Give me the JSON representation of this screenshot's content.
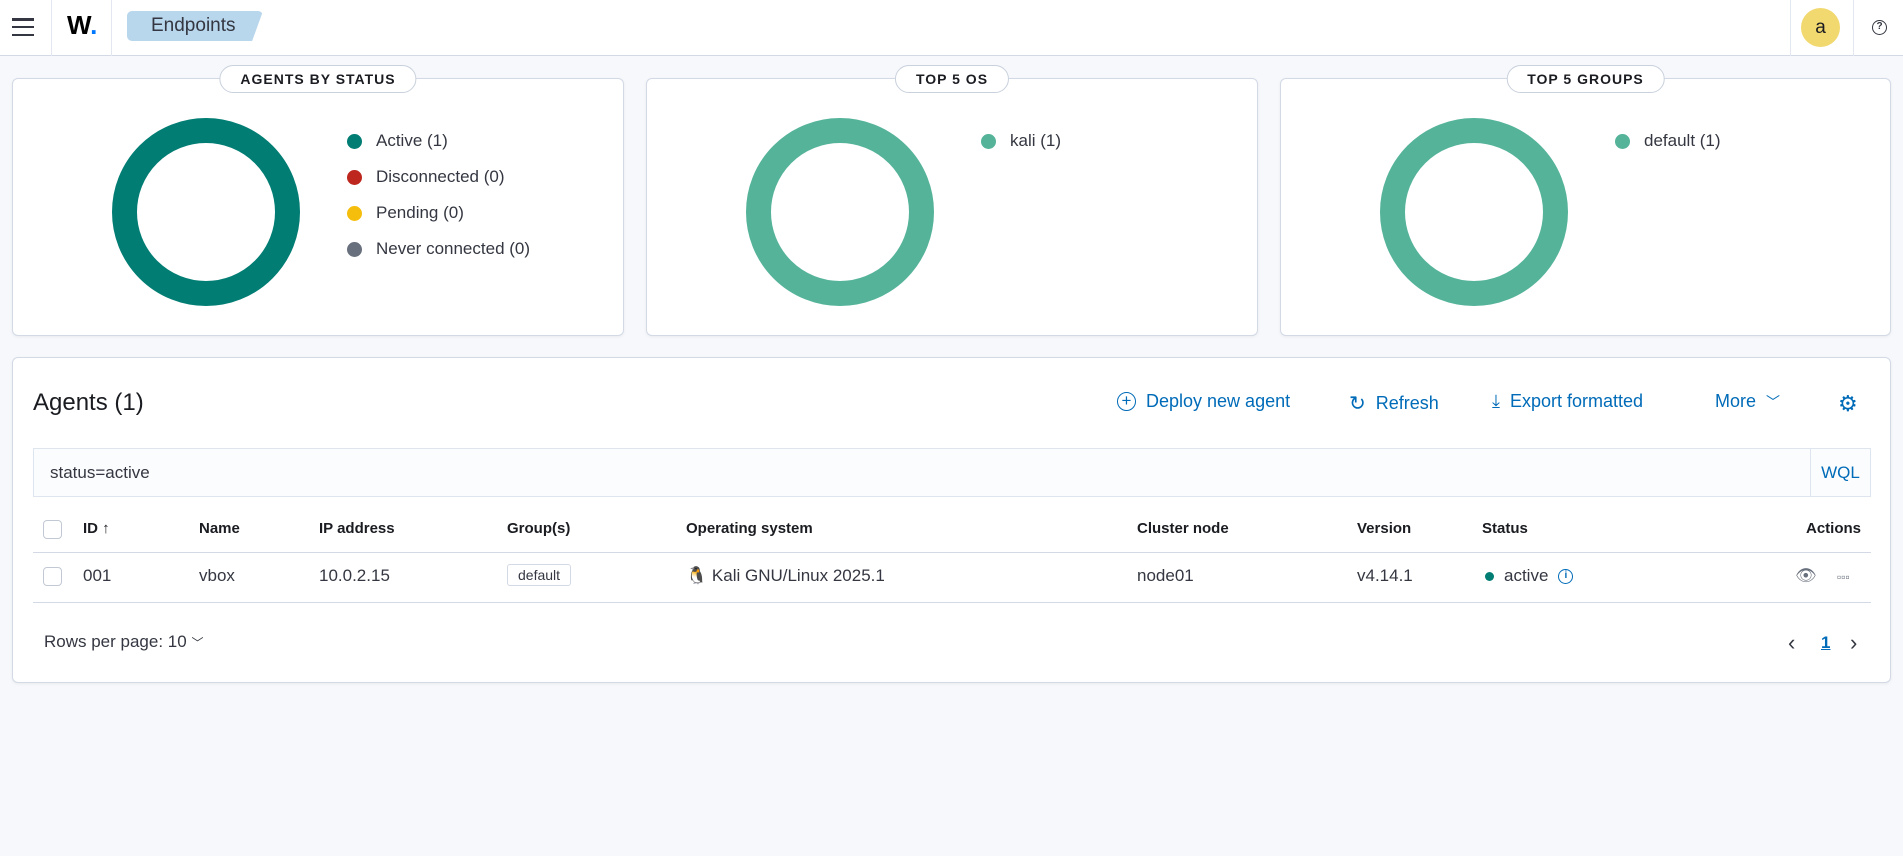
{
  "header": {
    "breadcrumb": "Endpoints",
    "logo": "W.",
    "avatar": "a",
    "colors": {
      "logo_dot": "#0077ff",
      "avatar": "#f1d86f"
    }
  },
  "cards": [
    {
      "title": "AGENTS BY STATUS",
      "legend": [
        {
          "label": "Active (1)",
          "color": "#017d73"
        },
        {
          "label": "Disconnected (0)",
          "color": "#bd271e"
        },
        {
          "label": "Pending (0)",
          "color": "#f5be0c"
        },
        {
          "label": "Never connected (0)",
          "color": "#69707d"
        }
      ],
      "ring_color": "#017d73"
    },
    {
      "title": "TOP 5 OS",
      "legend": [
        {
          "label": "kali (1)",
          "color": "#54b399"
        }
      ],
      "ring_color": "#54b399"
    },
    {
      "title": "TOP 5 GROUPS",
      "legend": [
        {
          "label": "default (1)",
          "color": "#54b399"
        }
      ],
      "ring_color": "#54b399"
    }
  ],
  "agents": {
    "title": "Agents (1)",
    "actions": {
      "deploy": "Deploy new agent",
      "refresh": "Refresh",
      "export": "Export formatted",
      "more": "More"
    },
    "search": {
      "value": "status=active",
      "wql": "WQL"
    },
    "columns": [
      "ID",
      "Name",
      "IP address",
      "Group(s)",
      "Operating system",
      "Cluster node",
      "Version",
      "Status",
      "Actions"
    ],
    "rows": [
      {
        "id": "001",
        "name": "vbox",
        "ip": "10.0.2.15",
        "group": "default",
        "os": "Kali GNU/Linux 2025.1",
        "node": "node01",
        "version": "v4.14.1",
        "status": "active"
      }
    ],
    "rows_per_page": "Rows per page: 10",
    "page": "1"
  }
}
